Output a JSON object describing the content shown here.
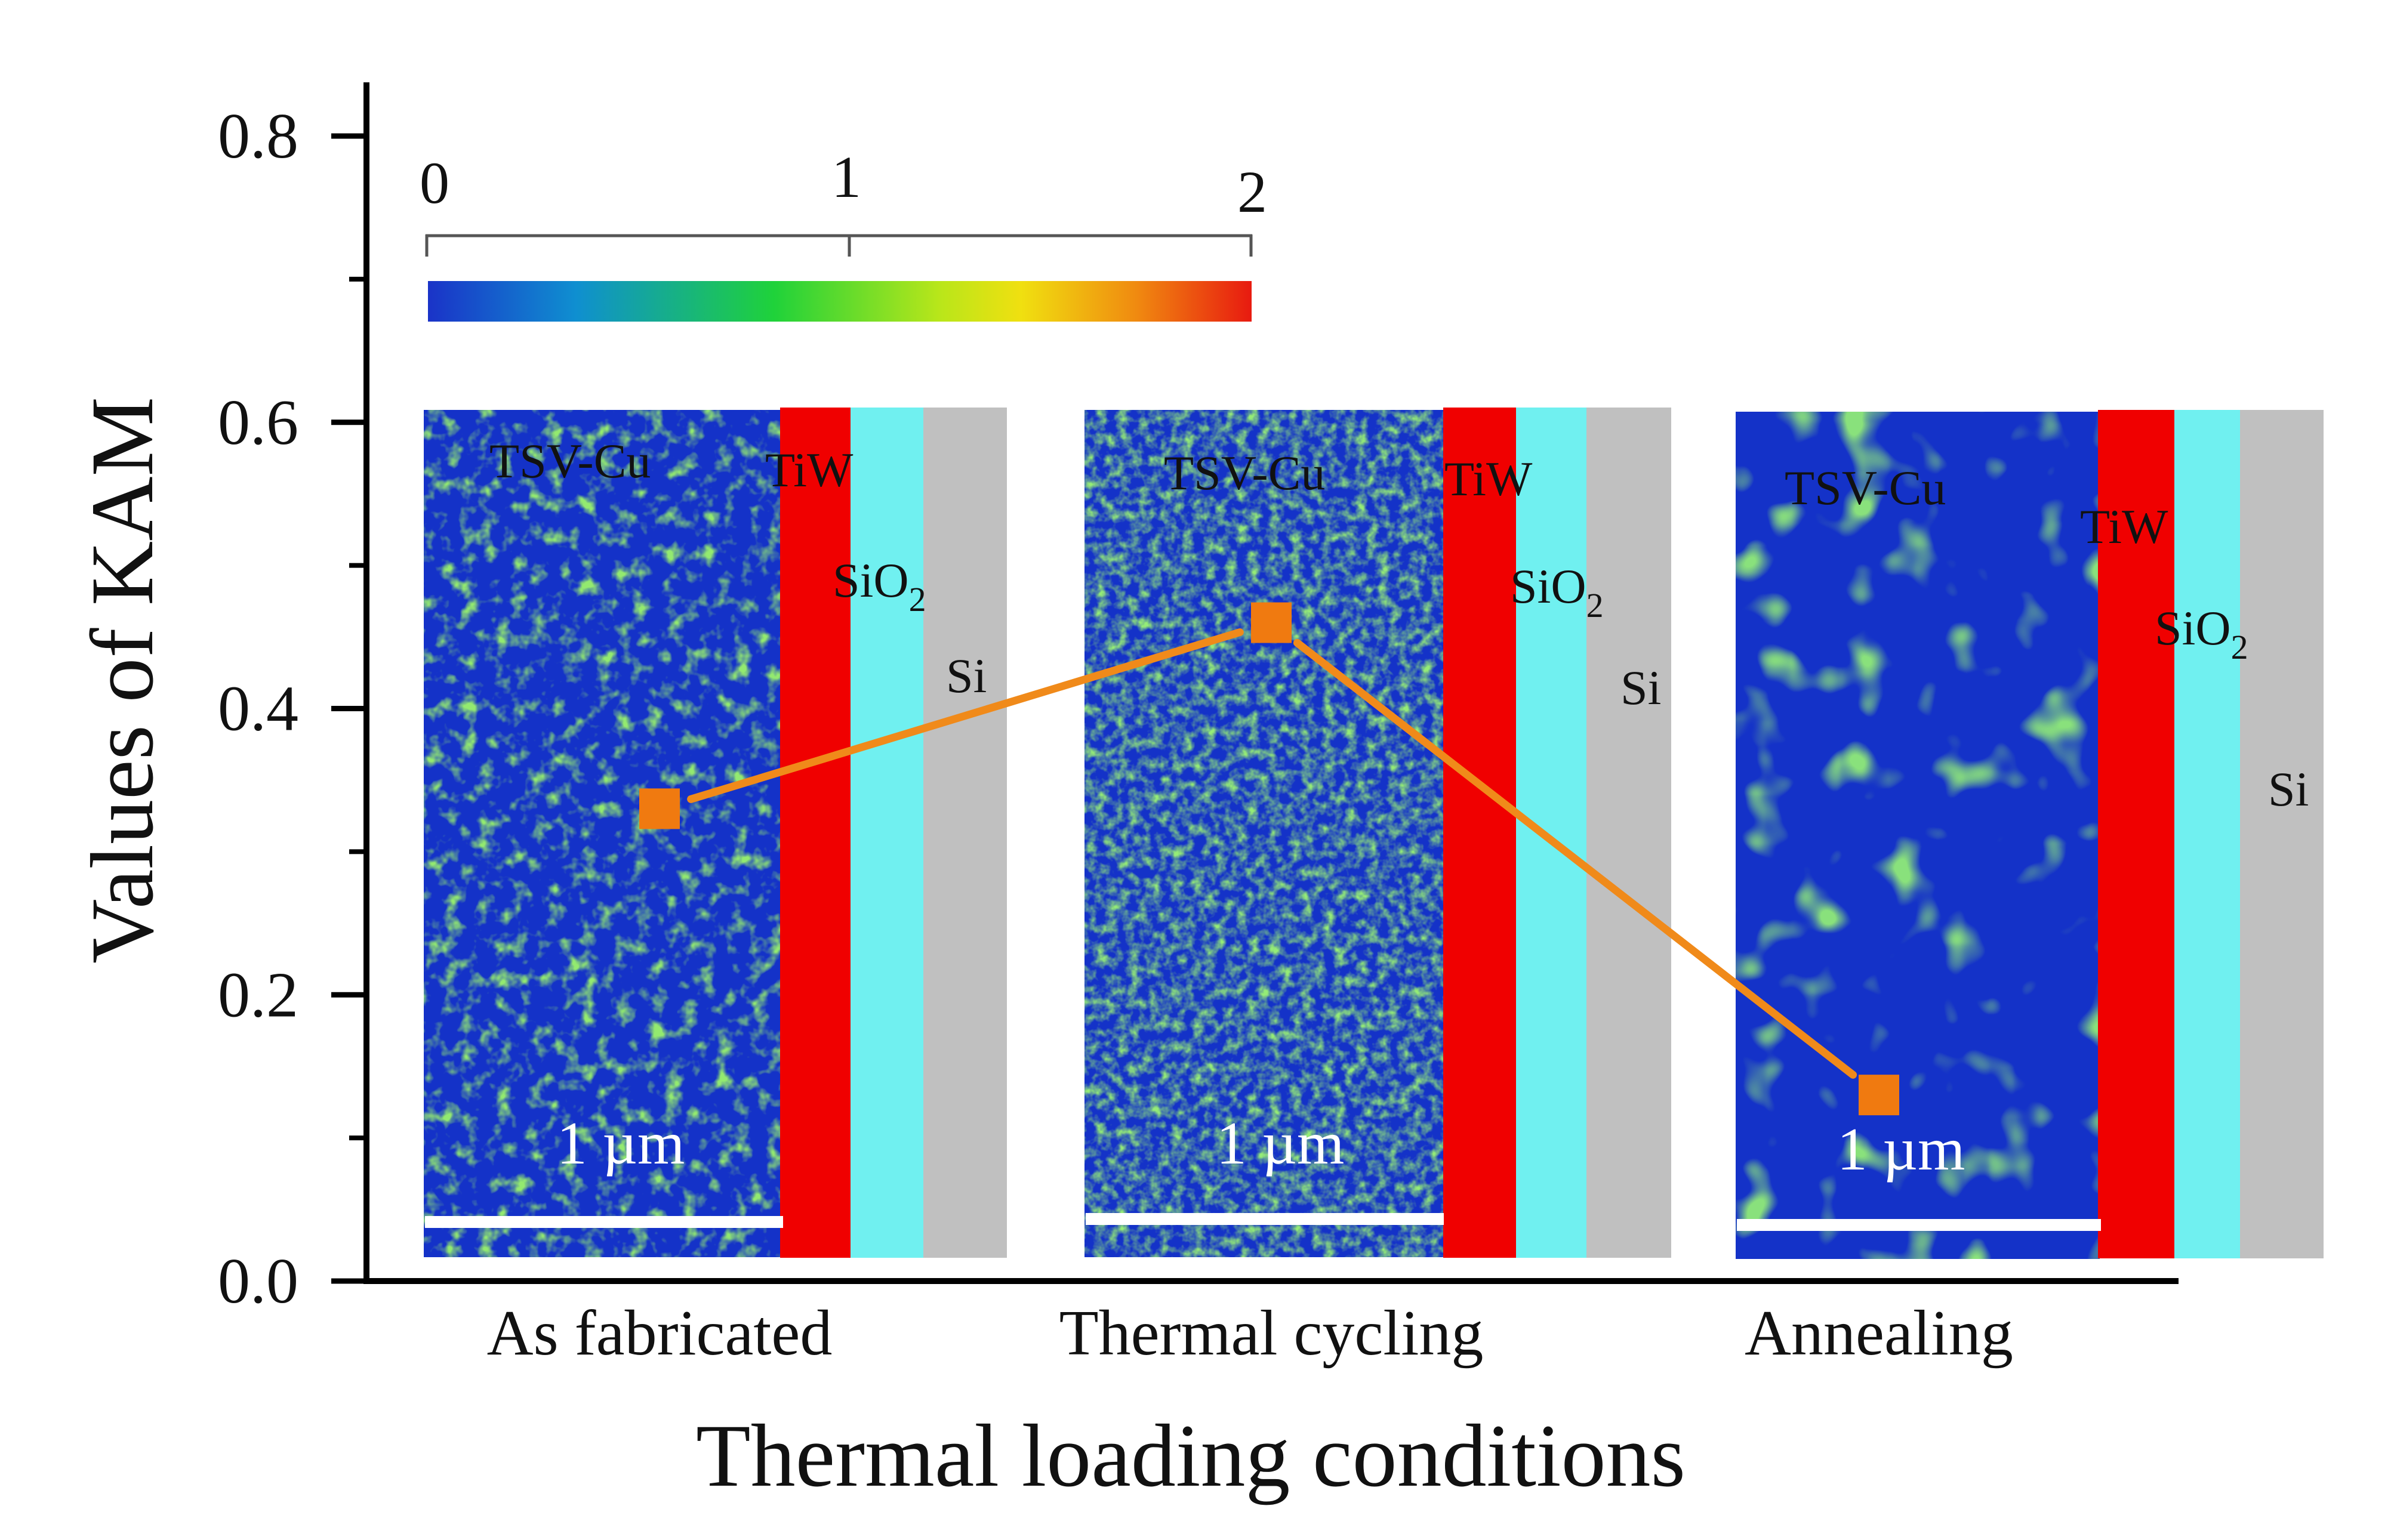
{
  "chart_data": {
    "type": "line",
    "title": "",
    "xlabel": "Thermal loading conditions",
    "ylabel": "Values of KAM",
    "ylim": [
      0.0,
      0.8
    ],
    "yticks": [
      0.0,
      0.2,
      0.4,
      0.6,
      0.8
    ],
    "ytick_labels": [
      "0.0",
      "0.2",
      "0.4",
      "0.6",
      "0.8"
    ],
    "categories": [
      "As fabricated",
      "Thermal cycling",
      "Annealing"
    ],
    "series": [
      {
        "name": "KAM",
        "values": [
          0.33,
          0.46,
          0.13
        ]
      }
    ],
    "grid": false,
    "legend": "none",
    "colorbar": {
      "min_label": "0",
      "mid_label": "1",
      "max_label": "2",
      "colors": [
        "#1a33c8",
        "#0f8fd0",
        "#1fd23a",
        "#b8e61a",
        "#f0e010",
        "#f08a10",
        "#e81a10"
      ]
    },
    "micrograph_labels": {
      "cu": "TSV-Cu",
      "tiw": "TiW",
      "sio2_base": "SiO",
      "sio2_sub": "2",
      "si": "Si",
      "scale_bar": "1 µm"
    }
  },
  "colors": {
    "line": "#f08a1a",
    "marker": "#f07a10",
    "map_base": "#1432c8",
    "map_green": "#4ad028",
    "tiw": "#f00000",
    "sio2": "#70f0f0",
    "si": "#c0c0c0"
  }
}
